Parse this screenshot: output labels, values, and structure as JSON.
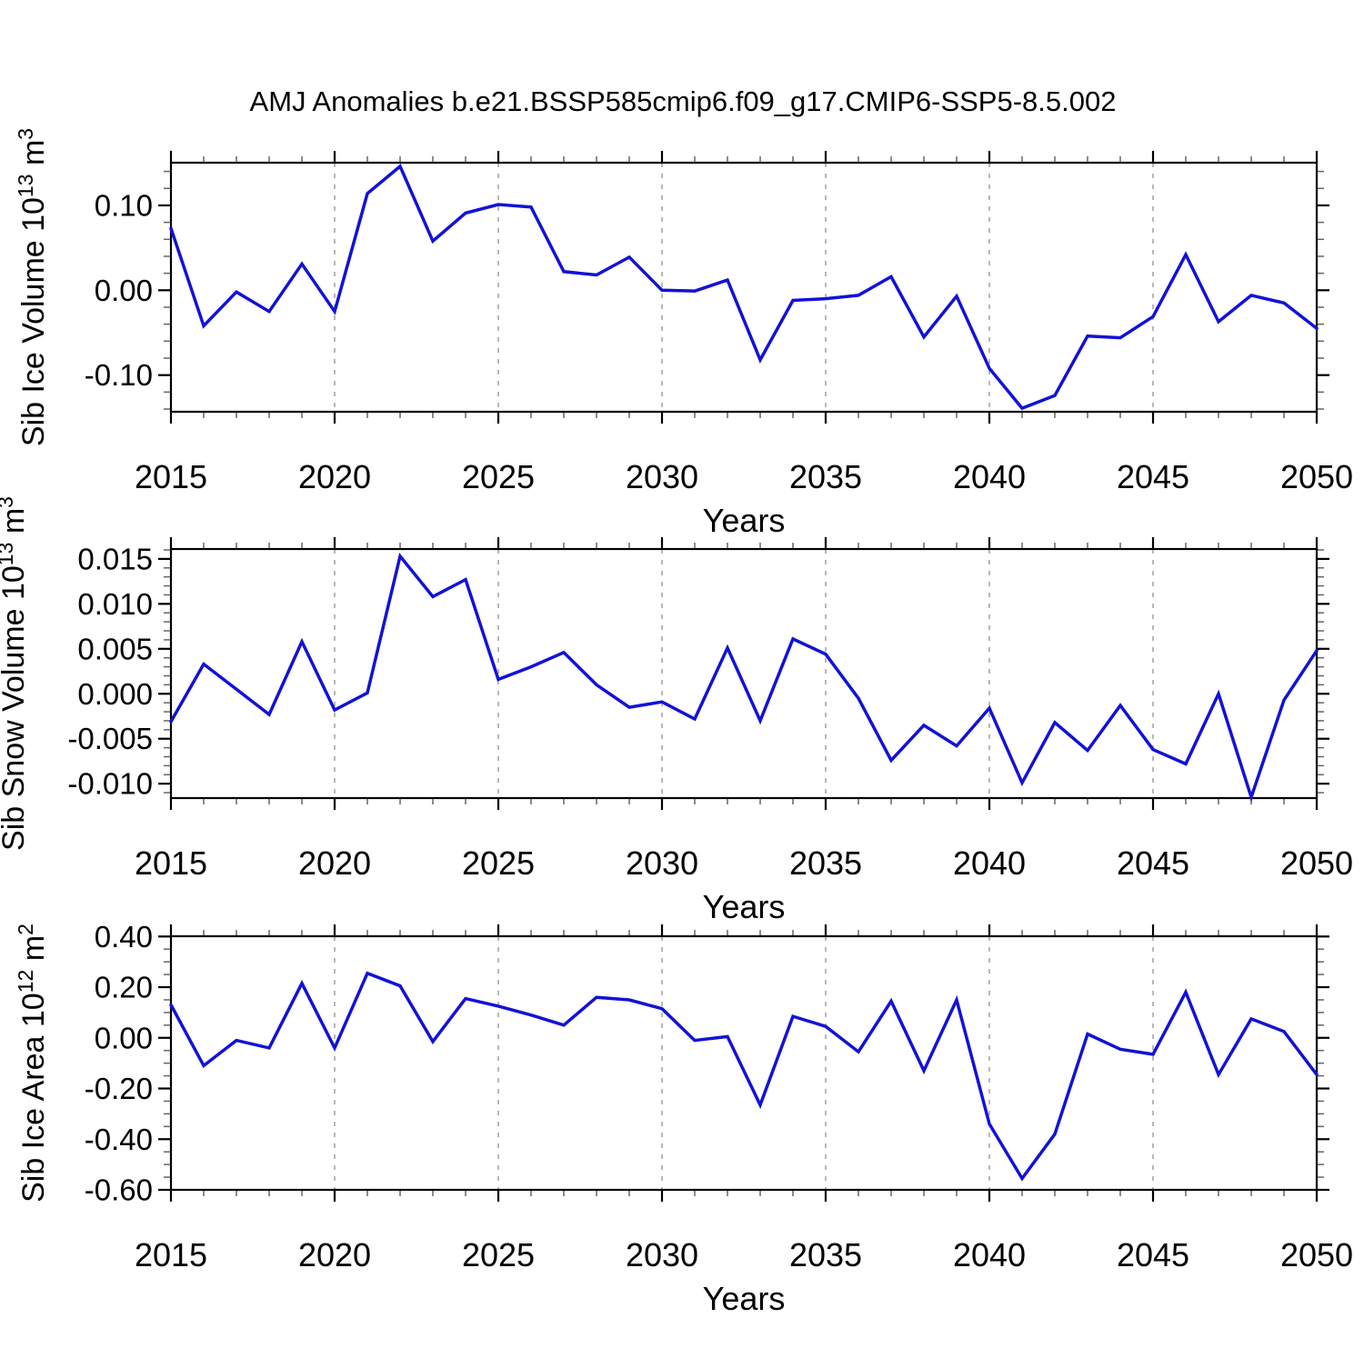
{
  "title": "AMJ Anomalies b.e21.BSSP585cmip6.f09_g17.CMIP6-SSP5-8.5.002",
  "colors": {
    "line": "#1212d6",
    "axis": "#000000",
    "minor_tick": "#666666",
    "grid": "#a0a0a0",
    "background": "#ffffff"
  },
  "xlabel": "Years",
  "chart_data": [
    {
      "type": "line",
      "name": "Sib Ice Volume",
      "units": "10^13 m^3",
      "ylabel_text": "Sib Ice Volume 10¹³ m³",
      "ylabel_parts": [
        {
          "t": "Sib Ice Volume 10"
        },
        {
          "t": "13",
          "sup": true
        },
        {
          "t": " m"
        },
        {
          "t": "3",
          "sup": true
        }
      ],
      "xlabel": "Years",
      "x": [
        2015,
        2016,
        2017,
        2018,
        2019,
        2020,
        2021,
        2022,
        2023,
        2024,
        2025,
        2026,
        2027,
        2028,
        2029,
        2030,
        2031,
        2032,
        2033,
        2034,
        2035,
        2036,
        2037,
        2038,
        2039,
        2040,
        2041,
        2042,
        2043,
        2044,
        2045,
        2046,
        2047,
        2048,
        2049,
        2050
      ],
      "values": [
        0.073,
        -0.042,
        -0.002,
        -0.025,
        0.031,
        -0.025,
        0.114,
        0.146,
        0.058,
        0.091,
        0.101,
        0.098,
        0.022,
        0.018,
        0.039,
        0.0,
        -0.001,
        0.012,
        -0.082,
        -0.012,
        -0.01,
        -0.006,
        0.016,
        -0.055,
        -0.007,
        -0.092,
        -0.139,
        -0.124,
        -0.054,
        -0.056,
        -0.031,
        0.042,
        -0.037,
        -0.006,
        -0.015,
        -0.045
      ],
      "ylim": [
        -0.1432,
        0.1503
      ],
      "yticks": [
        {
          "v": 0.1,
          "label": "0.10"
        },
        {
          "v": 0.0,
          "label": "0.00"
        },
        {
          "v": -0.1,
          "label": "-0.10"
        }
      ],
      "y_minor_step": 0.02,
      "xticks_major": [
        2015,
        2020,
        2025,
        2030,
        2035,
        2040,
        2045,
        2050
      ],
      "xtick_labels": [
        "2015",
        "2020",
        "2025",
        "2030",
        "2035",
        "2040",
        "2045",
        "2050"
      ],
      "x_minor_step": 1,
      "grid_years": [
        2020,
        2025,
        2030,
        2035,
        2040,
        2045
      ],
      "grid": true,
      "legend": "none"
    },
    {
      "type": "line",
      "name": "Sib Snow Volume",
      "units": "10^13 m^3",
      "ylabel_text": "Sib Snow Volume 10¹³ m³",
      "ylabel_parts": [
        {
          "t": "Sib Snow Volume 10"
        },
        {
          "t": "13",
          "sup": true
        },
        {
          "t": " m"
        },
        {
          "t": "3",
          "sup": true
        }
      ],
      "xlabel": "Years",
      "x": [
        2015,
        2016,
        2017,
        2018,
        2019,
        2020,
        2021,
        2022,
        2023,
        2024,
        2025,
        2026,
        2027,
        2028,
        2029,
        2030,
        2031,
        2032,
        2033,
        2034,
        2035,
        2036,
        2037,
        2038,
        2039,
        2040,
        2041,
        2042,
        2043,
        2044,
        2045,
        2046,
        2047,
        2048,
        2049,
        2050
      ],
      "values": [
        -0.0031,
        0.0033,
        0.0005,
        -0.0023,
        0.0058,
        -0.0018,
        0.0001,
        0.0153,
        0.0108,
        0.0127,
        0.0016,
        0.003,
        0.0046,
        0.001,
        -0.0015,
        -0.0009,
        -0.0028,
        0.0051,
        -0.003,
        0.0061,
        0.0044,
        -0.0005,
        -0.0074,
        -0.0035,
        -0.0058,
        -0.0016,
        -0.0099,
        -0.0032,
        -0.0063,
        -0.0013,
        -0.0062,
        -0.0078,
        0.0,
        -0.0115,
        -0.0007,
        0.0048
      ],
      "ylim": [
        -0.0116,
        0.0161
      ],
      "yticks": [
        {
          "v": 0.015,
          "label": "0.015"
        },
        {
          "v": 0.01,
          "label": "0.010"
        },
        {
          "v": 0.005,
          "label": "0.005"
        },
        {
          "v": 0.0,
          "label": "0.000"
        },
        {
          "v": -0.005,
          "label": "-0.005"
        },
        {
          "v": -0.01,
          "label": "-0.010"
        }
      ],
      "y_minor_step": 0.001,
      "xticks_major": [
        2015,
        2020,
        2025,
        2030,
        2035,
        2040,
        2045,
        2050
      ],
      "xtick_labels": [
        "2015",
        "2020",
        "2025",
        "2030",
        "2035",
        "2040",
        "2045",
        "2050"
      ],
      "x_minor_step": 1,
      "grid_years": [
        2020,
        2025,
        2030,
        2035,
        2040,
        2045
      ],
      "grid": true,
      "legend": "none"
    },
    {
      "type": "line",
      "name": "Sib Ice Area",
      "units": "10^12 m^2",
      "ylabel_text": "Sib Ice Area 10¹² m²",
      "ylabel_parts": [
        {
          "t": "Sib Ice Area 10"
        },
        {
          "t": "12",
          "sup": true
        },
        {
          "t": " m"
        },
        {
          "t": "2",
          "sup": true
        }
      ],
      "xlabel": "Years",
      "x": [
        2015,
        2016,
        2017,
        2018,
        2019,
        2020,
        2021,
        2022,
        2023,
        2024,
        2025,
        2026,
        2027,
        2028,
        2029,
        2030,
        2031,
        2032,
        2033,
        2034,
        2035,
        2036,
        2037,
        2038,
        2039,
        2040,
        2041,
        2042,
        2043,
        2044,
        2045,
        2046,
        2047,
        2048,
        2049,
        2050
      ],
      "values": [
        0.13,
        -0.11,
        -0.01,
        -0.04,
        0.215,
        -0.04,
        0.255,
        0.205,
        -0.015,
        0.155,
        0.125,
        0.09,
        0.05,
        0.16,
        0.15,
        0.115,
        -0.01,
        0.005,
        -0.265,
        0.085,
        0.045,
        -0.055,
        0.145,
        -0.13,
        0.15,
        -0.34,
        -0.555,
        -0.38,
        0.015,
        -0.045,
        -0.065,
        0.18,
        -0.145,
        0.075,
        0.025,
        -0.145
      ],
      "ylim": [
        -0.6,
        0.401
      ],
      "yticks": [
        {
          "v": 0.4,
          "label": "0.40"
        },
        {
          "v": 0.2,
          "label": "0.20"
        },
        {
          "v": 0.0,
          "label": "0.00"
        },
        {
          "v": -0.2,
          "label": "-0.20"
        },
        {
          "v": -0.4,
          "label": "-0.40"
        },
        {
          "v": -0.6,
          "label": "-0.60"
        }
      ],
      "y_minor_step": 0.05,
      "xticks_major": [
        2015,
        2020,
        2025,
        2030,
        2035,
        2040,
        2045,
        2050
      ],
      "xtick_labels": [
        "2015",
        "2020",
        "2025",
        "2030",
        "2035",
        "2040",
        "2045",
        "2050"
      ],
      "x_minor_step": 1,
      "grid_years": [
        2020,
        2025,
        2030,
        2035,
        2040,
        2045
      ],
      "grid": true,
      "legend": "none"
    }
  ]
}
